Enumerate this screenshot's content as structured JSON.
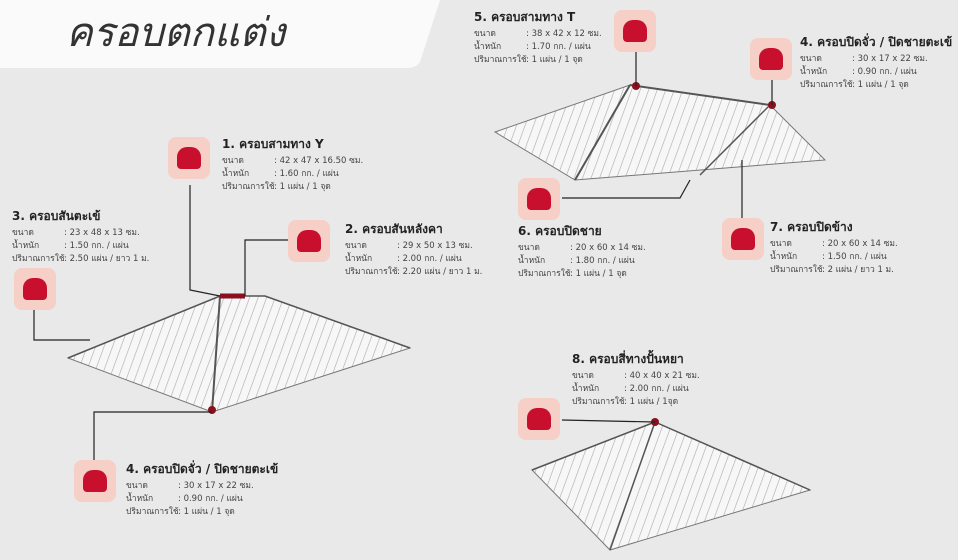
{
  "title": "ครอบตกแต่ง",
  "items": [
    {
      "name": "1. ครอบสามทาง Y",
      "rows": [
        [
          "ขนาด",
          ": 42 x 47 x 16.50 ซม."
        ],
        [
          "น้ำหนัก",
          ": 1.60 กก. / แผ่น"
        ],
        [
          "ปริมาณการใช้",
          ": 1 แผ่น / 1 จุด"
        ]
      ]
    },
    {
      "name": "2. ครอบสันหลังคา",
      "rows": [
        [
          "ขนาด",
          ": 29 x 50 x 13 ซม."
        ],
        [
          "น้ำหนัก",
          ": 2.00 กก. / แผ่น"
        ],
        [
          "ปริมาณการใช้",
          ": 2.20 แผ่น / ยาว 1 ม."
        ]
      ]
    },
    {
      "name": "3. ครอบสันตะเข้",
      "rows": [
        [
          "ขนาด",
          ": 23 x 48 x 13 ซม."
        ],
        [
          "น้ำหนัก",
          ": 1.50 กก. / แผ่น"
        ],
        [
          "ปริมาณการใช้",
          ": 2.50 แผ่น / ยาว 1 ม."
        ]
      ]
    },
    {
      "name": "4. ครอบปิดจั่ว / ปิดชายตะเข้",
      "rows": [
        [
          "ขนาด",
          ": 30 x 17 x 22 ซม."
        ],
        [
          "น้ำหนัก",
          ": 0.90 กก. / แผ่น"
        ],
        [
          "ปริมาณการใช้",
          ": 1 แผ่น / 1 จุด"
        ]
      ]
    },
    {
      "name": "5. ครอบสามทาง T",
      "rows": [
        [
          "ขนาด",
          ": 38 x 42 x 12 ซม."
        ],
        [
          "น้ำหนัก",
          ": 1.70 กก. / แผ่น"
        ],
        [
          "ปริมาณการใช้",
          ": 1 แผ่น / 1 จุด"
        ]
      ]
    },
    {
      "name": "4. ครอบปิดจั่ว / ปิดชายตะเข้",
      "rows": [
        [
          "ขนาด",
          ": 30 x 17 x 22 ซม."
        ],
        [
          "น้ำหนัก",
          ": 0.90 กก. / แผ่น"
        ],
        [
          "ปริมาณการใช้",
          ": 1 แผ่น / 1 จุด"
        ]
      ]
    },
    {
      "name": "6. ครอบปิดชาย",
      "rows": [
        [
          "ขนาด",
          ": 20 x 60 x 14 ซม."
        ],
        [
          "น้ำหนัก",
          ": 1.80 กก. / แผ่น"
        ],
        [
          "ปริมาณการใช้",
          ": 1 แผ่น / 1 จุด"
        ]
      ]
    },
    {
      "name": "7. ครอบปิดข้าง",
      "rows": [
        [
          "ขนาด",
          ": 20 x 60 x 14 ซม."
        ],
        [
          "น้ำหนัก",
          ": 1.50 กก. / แผ่น"
        ],
        [
          "ปริมาณการใช้",
          ": 2 แผ่น / ยาว 1 ม."
        ]
      ]
    },
    {
      "name": "8. ครอบสี่ทางปั้นหยา",
      "rows": [
        [
          "ขนาด",
          ": 40 x 40 x 21 ซม."
        ],
        [
          "น้ำหนัก",
          ": 2.00 กก. / แผ่น"
        ],
        [
          "ปริมาณการใช้",
          ": 1 แผ่น / 1จุด"
        ]
      ]
    }
  ]
}
